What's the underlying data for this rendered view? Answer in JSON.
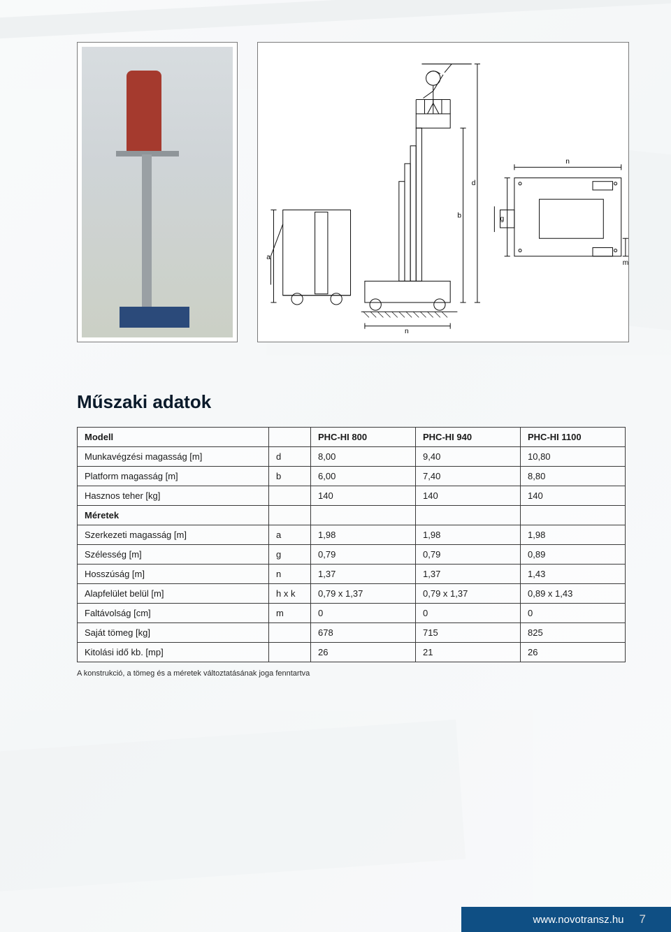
{
  "page": {
    "title": "Műszaki adatok",
    "footnote": "A konstrukció, a tömeg és a méretek változtatásának joga fenntartva",
    "background_color": "#ffffff"
  },
  "diagram": {
    "labels": {
      "a": "a",
      "b": "b",
      "d": "d",
      "g": "g",
      "m": "m",
      "n": "n",
      "n2": "n"
    },
    "line_color": "#111111",
    "line_width": 1
  },
  "table": {
    "header": {
      "col0": "Modell",
      "col2": "PHC-HI 800",
      "col3": "PHC-HI 940",
      "col4": "PHC-HI 1100"
    },
    "rows": [
      {
        "label": "Munkavégzési magasság [m]",
        "sym": "d",
        "v1": "8,00",
        "v2": "9,40",
        "v3": "10,80"
      },
      {
        "label": "Platform magasság [m]",
        "sym": "b",
        "v1": "6,00",
        "v2": "7,40",
        "v3": "8,80"
      },
      {
        "label": "Hasznos teher [kg]",
        "sym": "",
        "v1": "140",
        "v2": "140",
        "v3": "140"
      },
      {
        "label": "Méretek",
        "sym": "",
        "v1": "",
        "v2": "",
        "v3": "",
        "bold": true
      },
      {
        "label": "Szerkezeti magasság [m]",
        "sym": "a",
        "v1": "1,98",
        "v2": "1,98",
        "v3": "1,98"
      },
      {
        "label": "Szélesség [m]",
        "sym": "g",
        "v1": "0,79",
        "v2": "0,79",
        "v3": "0,89"
      },
      {
        "label": "Hosszúság [m]",
        "sym": "n",
        "v1": "1,37",
        "v2": "1,37",
        "v3": "1,43"
      },
      {
        "label": "Alapfelület belül [m]",
        "sym": "h x k",
        "v1": "0,79 x 1,37",
        "v2": "0,79 x 1,37",
        "v3": "0,89 x 1,43"
      },
      {
        "label": "Faltávolság [cm]",
        "sym": "m",
        "v1": "0",
        "v2": "0",
        "v3": "0"
      },
      {
        "label": "Saját tömeg [kg]",
        "sym": "",
        "v1": "678",
        "v2": "715",
        "v3": "825"
      },
      {
        "label": "Kitolási idő kb. [mp]",
        "sym": "",
        "v1": "26",
        "v2": "21",
        "v3": "26"
      }
    ],
    "border_color": "#3a3a3a",
    "font_size": 13,
    "header_bold": true
  },
  "footer": {
    "url": "www.novotransz.hu",
    "page_number": "7",
    "background_color": "#0f4f84",
    "text_color": "#ffffff"
  }
}
